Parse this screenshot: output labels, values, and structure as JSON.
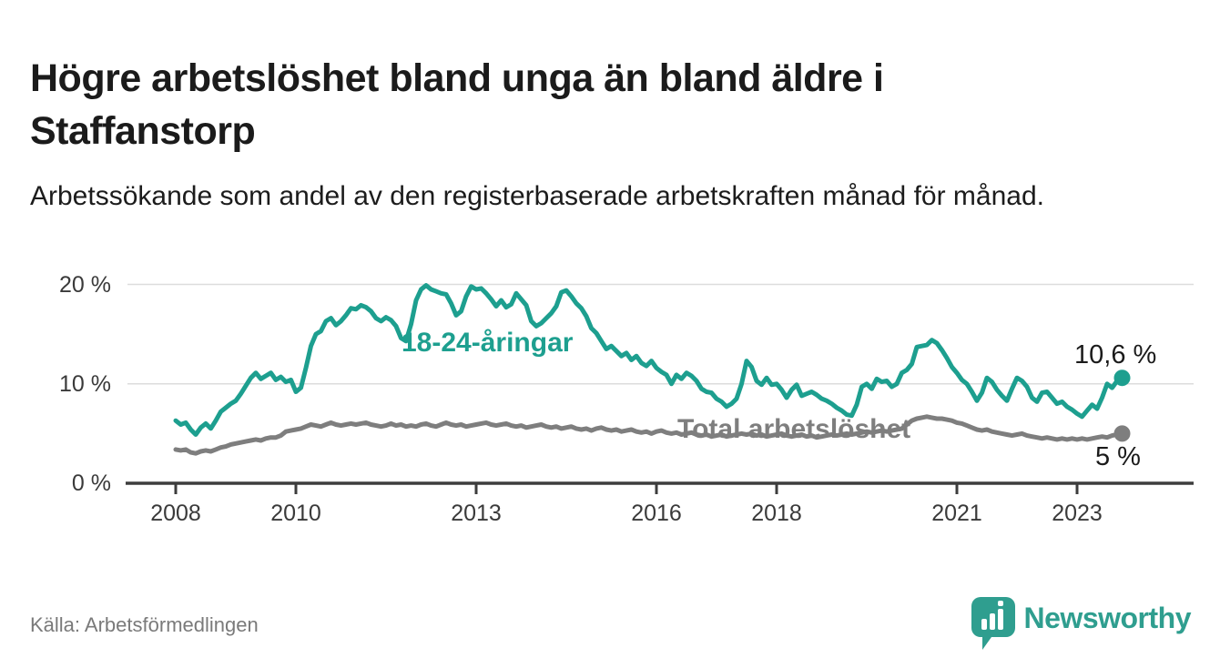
{
  "header": {
    "title": "Högre arbetslöshet bland unga än bland äldre i Staffanstorp",
    "subtitle": "Arbetssökande som andel av den registerbaserade arbetskraften månad för månad."
  },
  "footer": {
    "source": "Källa: Arbetsförmedlingen",
    "brand": "Newsworthy"
  },
  "colors": {
    "young_line": "#1d9f8f",
    "total_line": "#7e7e7e",
    "gridline": "#dcdcdc",
    "axis": "#3d3d3d",
    "text_dark": "#1b1b1b",
    "tick_text": "#3a3a3a",
    "source_text": "#7a7a7a",
    "brand_teal": "#2f9e8f"
  },
  "chart_data": {
    "type": "line",
    "title": "Högre arbetslöshet bland unga än bland äldre i Staffanstorp",
    "subtitle": "Arbetssökande som andel av den registerbaserade arbetskraften månad för månad.",
    "x_unit": "month",
    "x_start": "2008-01",
    "x_end": "2023-10",
    "ylim": [
      0,
      21.5
    ],
    "grid": "horizontal",
    "legend_position": "inline-labels",
    "y_ticks": [
      {
        "value": 20,
        "label": "20 %"
      },
      {
        "value": 10,
        "label": "10 %"
      },
      {
        "value": 0,
        "label": "0 %"
      }
    ],
    "x_ticks": [
      {
        "year": 2008,
        "label": "2008",
        "month_index": 0
      },
      {
        "year": 2010,
        "label": "2010",
        "month_index": 24
      },
      {
        "year": 2013,
        "label": "2013",
        "month_index": 60
      },
      {
        "year": 2016,
        "label": "2016",
        "month_index": 96
      },
      {
        "year": 2018,
        "label": "2018",
        "month_index": 120
      },
      {
        "year": 2021,
        "label": "2021",
        "month_index": 156
      },
      {
        "year": 2023,
        "label": "2023",
        "month_index": 180
      }
    ],
    "series": [
      {
        "name": "18-24-åringar",
        "color": "#1d9f8f",
        "end_label": "10,6 %",
        "end_value": 10.6,
        "values": [
          6.3,
          5.9,
          6.1,
          5.4,
          4.9,
          5.6,
          6.0,
          5.5,
          6.3,
          7.2,
          7.6,
          8.0,
          8.3,
          9.0,
          9.8,
          10.6,
          11.1,
          10.5,
          10.8,
          11.1,
          10.4,
          10.7,
          10.2,
          10.4,
          9.2,
          9.6,
          11.6,
          13.8,
          15.0,
          15.3,
          16.3,
          16.6,
          15.9,
          16.3,
          16.9,
          17.6,
          17.5,
          17.9,
          17.7,
          17.3,
          16.6,
          16.3,
          16.7,
          16.4,
          15.8,
          14.6,
          14.3,
          16.0,
          18.4,
          19.5,
          19.9,
          19.5,
          19.3,
          19.1,
          19.0,
          18.1,
          16.9,
          17.3,
          18.8,
          19.8,
          19.5,
          19.6,
          19.1,
          18.5,
          17.8,
          18.4,
          17.7,
          18.0,
          19.1,
          18.5,
          17.9,
          16.3,
          15.8,
          16.1,
          16.6,
          17.1,
          17.8,
          19.2,
          19.4,
          18.8,
          18.1,
          17.6,
          16.8,
          15.6,
          15.1,
          14.3,
          13.5,
          13.8,
          13.3,
          12.8,
          13.1,
          12.4,
          12.8,
          12.1,
          11.8,
          12.3,
          11.6,
          11.2,
          10.9,
          10.0,
          10.9,
          10.5,
          11.1,
          10.8,
          10.3,
          9.5,
          9.2,
          9.1,
          8.5,
          8.2,
          7.7,
          8.0,
          8.5,
          10.0,
          12.3,
          11.7,
          10.3,
          9.9,
          10.6,
          9.9,
          10.0,
          9.4,
          8.6,
          9.4,
          9.9,
          8.8,
          9.0,
          9.2,
          8.9,
          8.5,
          8.3,
          8.0,
          7.6,
          7.3,
          6.9,
          6.8,
          7.9,
          9.7,
          10.0,
          9.5,
          10.5,
          10.2,
          10.3,
          9.7,
          10.0,
          11.1,
          11.4,
          12.0,
          13.7,
          13.8,
          13.9,
          14.4,
          14.1,
          13.4,
          12.6,
          11.7,
          11.1,
          10.4,
          10.0,
          9.2,
          8.3,
          9.1,
          10.6,
          10.2,
          9.4,
          8.8,
          8.3,
          9.5,
          10.6,
          10.3,
          9.7,
          8.6,
          8.2,
          9.1,
          9.2,
          8.6,
          8.0,
          8.2,
          7.7,
          7.4,
          7.0,
          6.7,
          7.3,
          7.9,
          7.5,
          8.6,
          10.0,
          9.6,
          10.3,
          10.6
        ]
      },
      {
        "name": "Total arbetslöshet",
        "color": "#7e7e7e",
        "end_label": "5 %",
        "end_value": 5.0,
        "values": [
          3.4,
          3.3,
          3.4,
          3.1,
          3.0,
          3.2,
          3.3,
          3.2,
          3.4,
          3.6,
          3.7,
          3.9,
          4.0,
          4.1,
          4.2,
          4.3,
          4.4,
          4.3,
          4.5,
          4.6,
          4.6,
          4.8,
          5.2,
          5.3,
          5.4,
          5.5,
          5.7,
          5.9,
          5.8,
          5.7,
          5.9,
          6.1,
          5.9,
          5.8,
          5.9,
          6.0,
          5.9,
          6.0,
          6.1,
          5.9,
          5.8,
          5.7,
          5.8,
          6.0,
          5.8,
          5.9,
          5.7,
          5.8,
          5.7,
          5.9,
          6.0,
          5.8,
          5.7,
          5.9,
          6.1,
          5.9,
          5.8,
          5.9,
          5.7,
          5.8,
          5.9,
          6.0,
          6.1,
          5.9,
          5.8,
          5.9,
          6.0,
          5.8,
          5.7,
          5.8,
          5.6,
          5.7,
          5.8,
          5.9,
          5.7,
          5.6,
          5.7,
          5.5,
          5.6,
          5.7,
          5.5,
          5.4,
          5.5,
          5.3,
          5.5,
          5.6,
          5.4,
          5.3,
          5.4,
          5.2,
          5.3,
          5.4,
          5.2,
          5.1,
          5.2,
          5.0,
          5.2,
          5.3,
          5.1,
          5.0,
          5.1,
          4.9,
          5.0,
          5.1,
          4.9,
          4.8,
          4.9,
          4.7,
          4.8,
          4.9,
          4.7,
          4.8,
          4.9,
          5.0,
          4.9,
          5.0,
          4.8,
          4.9,
          4.7,
          4.8,
          4.9,
          5.0,
          4.8,
          4.7,
          4.8,
          4.9,
          4.7,
          4.8,
          4.6,
          4.7,
          4.8,
          4.9,
          4.8,
          4.9,
          5.0,
          4.9,
          5.0,
          5.1,
          5.2,
          5.1,
          5.2,
          5.3,
          5.2,
          5.3,
          5.4,
          5.5,
          5.9,
          6.3,
          6.5,
          6.6,
          6.7,
          6.6,
          6.5,
          6.5,
          6.4,
          6.3,
          6.1,
          6.0,
          5.8,
          5.6,
          5.4,
          5.3,
          5.4,
          5.2,
          5.1,
          5.0,
          4.9,
          4.8,
          4.9,
          5.0,
          4.8,
          4.7,
          4.6,
          4.5,
          4.6,
          4.5,
          4.4,
          4.5,
          4.4,
          4.5,
          4.4,
          4.5,
          4.4,
          4.5,
          4.6,
          4.7,
          4.6,
          4.8,
          4.9,
          5.0
        ]
      }
    ]
  }
}
